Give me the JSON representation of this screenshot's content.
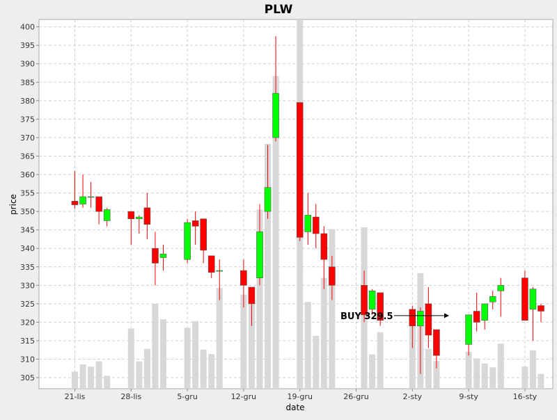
{
  "chart_data": {
    "type": "candlestick",
    "title": "PLW",
    "xlabel": "date",
    "ylabel": "price",
    "ylim": [
      302,
      402
    ],
    "yticks": [
      305,
      310,
      315,
      320,
      325,
      330,
      335,
      340,
      345,
      350,
      355,
      360,
      365,
      370,
      375,
      380,
      385,
      390,
      395,
      400
    ],
    "grid": true,
    "x_tick_labels": [
      "21-lis",
      "28-lis",
      "5-gru",
      "12-gru",
      "19-gru",
      "26-gru",
      "2-sty",
      "9-sty",
      "16-sty"
    ],
    "colors": {
      "up": "#00ff00",
      "down": "#ff0000",
      "volume": "#d8d8d8",
      "background": "#ffffff",
      "outer": "#eeeeee",
      "grid": "#d0d0d0"
    },
    "annotation": {
      "text": "BUY 329.5",
      "arrow_target_price": 321.8
    },
    "candles": [
      {
        "date": "2011-11-21",
        "open": 352.8,
        "high": 361.0,
        "low": 350.8,
        "close": 351.8
      },
      {
        "date": "2011-11-22",
        "open": 352.0,
        "high": 360.0,
        "low": 351.0,
        "close": 354.0
      },
      {
        "date": "2011-11-23",
        "open": 354.0,
        "high": 358.0,
        "low": 351.0,
        "close": 354.0
      },
      {
        "date": "2011-11-24",
        "open": 354.0,
        "high": 354.0,
        "low": 346.5,
        "close": 350.0
      },
      {
        "date": "2011-11-25",
        "open": 347.5,
        "high": 351.0,
        "low": 346.0,
        "close": 350.5
      },
      {
        "date": "2011-11-28",
        "open": 350.0,
        "high": 350.0,
        "low": 341.0,
        "close": 348.0
      },
      {
        "date": "2011-11-29",
        "open": 348.0,
        "high": 349.0,
        "low": 344.0,
        "close": 348.5
      },
      {
        "date": "2011-11-30",
        "open": 351.0,
        "high": 355.0,
        "low": 342.5,
        "close": 346.5
      },
      {
        "date": "2011-12-01",
        "open": 340.0,
        "high": 344.5,
        "low": 330.0,
        "close": 336.0
      },
      {
        "date": "2011-12-02",
        "open": 337.5,
        "high": 341.0,
        "low": 334.0,
        "close": 338.5
      },
      {
        "date": "2011-12-05",
        "open": 337.0,
        "high": 348.0,
        "low": 336.0,
        "close": 347.0
      },
      {
        "date": "2011-12-06",
        "open": 347.5,
        "high": 350.0,
        "low": 341.0,
        "close": 346.0
      },
      {
        "date": "2011-12-07",
        "open": 348.0,
        "high": 348.0,
        "low": 336.0,
        "close": 339.5
      },
      {
        "date": "2011-12-08",
        "open": 338.0,
        "high": 338.0,
        "low": 332.0,
        "close": 333.5
      },
      {
        "date": "2011-12-09",
        "open": 334.0,
        "high": 337.0,
        "low": 326.0,
        "close": 334.0
      },
      {
        "date": "2011-12-12",
        "open": 334.0,
        "high": 337.0,
        "low": 324.0,
        "close": 330.0
      },
      {
        "date": "2011-12-13",
        "open": 329.5,
        "high": 329.5,
        "low": 319.0,
        "close": 325.0
      },
      {
        "date": "2011-12-14",
        "open": 332.0,
        "high": 352.0,
        "low": 330.0,
        "close": 344.5
      },
      {
        "date": "2011-12-15",
        "open": 350.0,
        "high": 368.0,
        "low": 348.0,
        "close": 356.5
      },
      {
        "date": "2011-12-16",
        "open": 370.0,
        "high": 397.5,
        "low": 369.0,
        "close": 382.0
      },
      {
        "date": "2011-12-19",
        "open": 379.5,
        "high": 379.5,
        "low": 342.0,
        "close": 343.0
      },
      {
        "date": "2011-12-20",
        "open": 344.5,
        "high": 355.0,
        "low": 341.0,
        "close": 349.0
      },
      {
        "date": "2011-12-21",
        "open": 348.5,
        "high": 352.0,
        "low": 340.0,
        "close": 344.0
      },
      {
        "date": "2011-12-22",
        "open": 344.0,
        "high": 346.0,
        "low": 329.0,
        "close": 337.0
      },
      {
        "date": "2011-12-23",
        "open": 335.0,
        "high": 338.0,
        "low": 326.0,
        "close": 330.0
      },
      {
        "date": "2011-12-27",
        "open": 330.0,
        "high": 334.0,
        "low": 320.0,
        "close": 322.0
      },
      {
        "date": "2011-12-28",
        "open": 323.5,
        "high": 329.0,
        "low": 322.0,
        "close": 328.5
      },
      {
        "date": "2011-12-29",
        "open": 328.0,
        "high": 328.0,
        "low": 319.0,
        "close": 320.5
      },
      {
        "date": "2012-01-02",
        "open": 323.5,
        "high": 324.5,
        "low": 313.0,
        "close": 319.0
      },
      {
        "date": "2012-01-03",
        "open": 319.0,
        "high": 324.0,
        "low": 306.0,
        "close": 323.0
      },
      {
        "date": "2012-01-04",
        "open": 325.0,
        "high": 329.5,
        "low": 313.0,
        "close": 316.5
      },
      {
        "date": "2012-01-05",
        "open": 318.0,
        "high": 318.0,
        "low": 307.5,
        "close": 311.0
      },
      {
        "date": "2012-01-09",
        "open": 314.0,
        "high": 322.0,
        "low": 311.0,
        "close": 322.0
      },
      {
        "date": "2012-01-10",
        "open": 323.0,
        "high": 328.0,
        "low": 317.5,
        "close": 320.0
      },
      {
        "date": "2012-01-11",
        "open": 320.5,
        "high": 325.0,
        "low": 318.0,
        "close": 325.0
      },
      {
        "date": "2012-01-12",
        "open": 325.5,
        "high": 328.5,
        "low": 323.5,
        "close": 327.0
      },
      {
        "date": "2012-01-13",
        "open": 328.5,
        "high": 332.0,
        "low": 321.5,
        "close": 330.0
      },
      {
        "date": "2012-01-16",
        "open": 332.0,
        "high": 334.0,
        "low": 320.5,
        "close": 320.5
      },
      {
        "date": "2012-01-17",
        "open": 323.5,
        "high": 329.5,
        "low": 315.0,
        "close": 329.0
      },
      {
        "date": "2012-01-18",
        "open": 324.5,
        "high": 325.0,
        "low": 320.0,
        "close": 323.0
      }
    ],
    "volume_bars": [
      {
        "date": "2011-11-21",
        "value": 306.6
      },
      {
        "date": "2011-11-22",
        "value": 308.6
      },
      {
        "date": "2011-11-23",
        "value": 308.0
      },
      {
        "date": "2011-11-24",
        "value": 309.4
      },
      {
        "date": "2011-11-25",
        "value": 305.5
      },
      {
        "date": "2011-11-28",
        "value": 318.3
      },
      {
        "date": "2011-11-29",
        "value": 309.4
      },
      {
        "date": "2011-11-30",
        "value": 312.8
      },
      {
        "date": "2011-12-01",
        "value": 325.0
      },
      {
        "date": "2011-12-02",
        "value": 320.8
      },
      {
        "date": "2011-12-05",
        "value": 318.5
      },
      {
        "date": "2011-12-06",
        "value": 320.3
      },
      {
        "date": "2011-12-07",
        "value": 312.6
      },
      {
        "date": "2011-12-08",
        "value": 311.4
      },
      {
        "date": "2011-12-09",
        "value": 329.3
      },
      {
        "date": "2011-12-12",
        "value": 327.5
      },
      {
        "date": "2011-12-13",
        "value": 326.0
      },
      {
        "date": "2011-12-14",
        "value": 350.5
      },
      {
        "date": "2011-12-15",
        "value": 368.3
      },
      {
        "date": "2011-12-16",
        "value": 386.7
      },
      {
        "date": "2011-12-19",
        "value": 402.0
      },
      {
        "date": "2011-12-20",
        "value": 325.5
      },
      {
        "date": "2011-12-21",
        "value": 316.3
      },
      {
        "date": "2011-12-22",
        "value": 332.0
      },
      {
        "date": "2011-12-23",
        "value": 345.2
      },
      {
        "date": "2011-12-27",
        "value": 345.7
      },
      {
        "date": "2011-12-28",
        "value": 311.3
      },
      {
        "date": "2011-12-29",
        "value": 317.3
      },
      {
        "date": "2012-01-02",
        "value": 319.5
      },
      {
        "date": "2012-01-03",
        "value": 333.3
      },
      {
        "date": "2012-01-04",
        "value": 312.8
      },
      {
        "date": "2012-01-05",
        "value": 309.5
      },
      {
        "date": "2012-01-09",
        "value": 312.0
      },
      {
        "date": "2012-01-10",
        "value": 310.2
      },
      {
        "date": "2012-01-11",
        "value": 308.8
      },
      {
        "date": "2012-01-12",
        "value": 307.8
      },
      {
        "date": "2012-01-13",
        "value": 314.2
      },
      {
        "date": "2012-01-16",
        "value": 308.0
      },
      {
        "date": "2012-01-17",
        "value": 312.4
      },
      {
        "date": "2012-01-18",
        "value": 306.0
      }
    ]
  }
}
